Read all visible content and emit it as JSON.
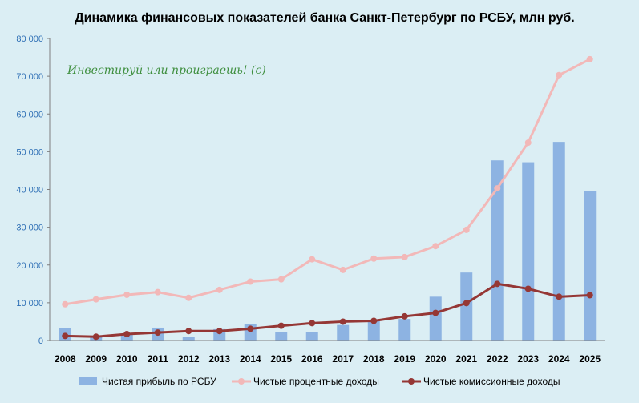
{
  "chart_data": {
    "type": "bar",
    "title": "Динамика финансовых показателей банка Санкт-Петербург по РСБУ, млн руб.",
    "watermark": "Инвестируй или проиграешь! (с)",
    "categories": [
      "2008",
      "2009",
      "2010",
      "2011",
      "2012",
      "2013",
      "2014",
      "2015",
      "2016",
      "2017",
      "2018",
      "2019",
      "2020",
      "2021",
      "2022",
      "2023",
      "2024",
      "2025"
    ],
    "ylim": [
      0,
      80000
    ],
    "y_ticks": [
      "0",
      "10 000",
      "20 000",
      "30 000",
      "40 000",
      "50 000",
      "60 000",
      "70 000",
      "80 000"
    ],
    "grid": false,
    "legend_position": "bottom",
    "series": [
      {
        "name": "Чистая прибыль по РСБУ",
        "type": "bar",
        "color": "#8db3e2",
        "values": [
          3200,
          1100,
          1500,
          3400,
          900,
          3000,
          4300,
          2300,
          2300,
          4100,
          5400,
          5700,
          11600,
          18000,
          47700,
          47200,
          52600,
          39600
        ]
      },
      {
        "name": "Чистые процентные доходы",
        "type": "line",
        "color": "#f2b8b8",
        "values": [
          9600,
          10900,
          12100,
          12800,
          11300,
          13400,
          15600,
          16200,
          21500,
          18700,
          21700,
          22100,
          25000,
          29300,
          40300,
          52400,
          70300,
          74500
        ]
      },
      {
        "name": "Чистые комиссионные доходы",
        "type": "line",
        "color": "#953735",
        "values": [
          1200,
          1000,
          1700,
          2100,
          2500,
          2500,
          3100,
          3900,
          4600,
          5000,
          5200,
          6400,
          7300,
          9900,
          15000,
          13700,
          11600,
          12000
        ]
      }
    ]
  }
}
